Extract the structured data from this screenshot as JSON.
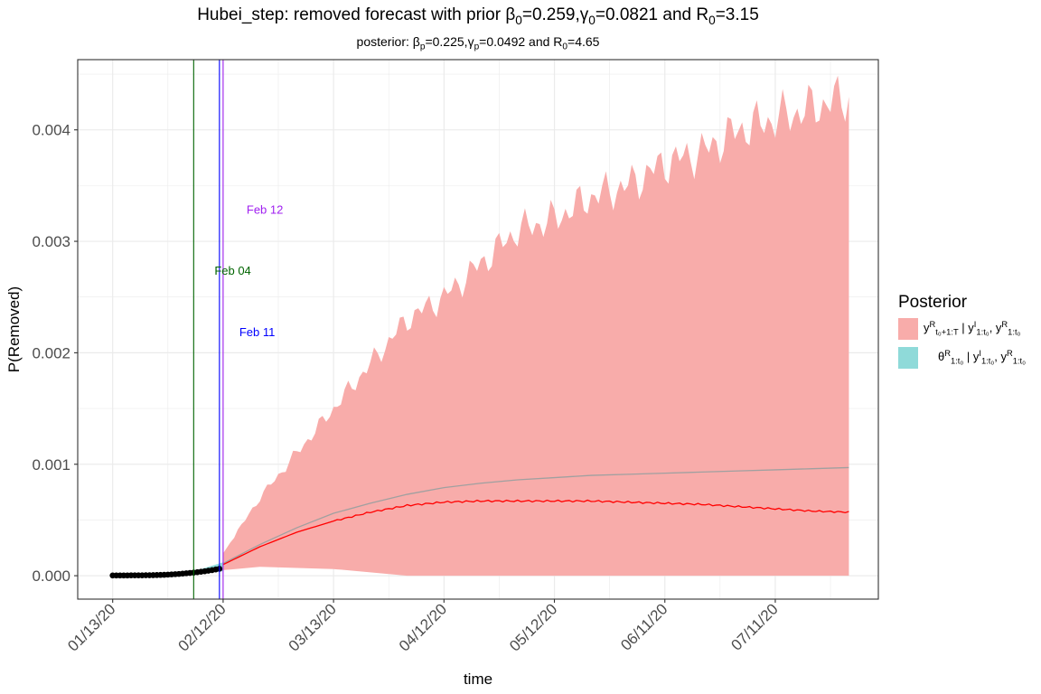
{
  "title": {
    "pre": "Hubei_step: removed forecast with prior ",
    "b": "β",
    "b_sub": "0",
    "b_val": "=0.259,",
    "g": "γ",
    "g_sub": "0",
    "g_val": "=0.0821 and R",
    "r_sub": "0",
    "r_val": "=3.15"
  },
  "subtitle": {
    "pre": "posterior: ",
    "b": "β",
    "b_sub": "p",
    "b_val": "=0.225,",
    "g": "γ",
    "g_sub": "p",
    "g_val": "=0.0492 and R",
    "r_sub": "0",
    "r_val": "=4.65"
  },
  "colors": {
    "forecast_band": "#f8acaa",
    "posterior_band": "#8fdad9",
    "forecast_median": "#ff0000",
    "prior_mean": "#a0a0a0",
    "observed": "#000000",
    "line_feb04": "#006400",
    "line_feb11": "#0000ff",
    "line_feb12": "#a020f0",
    "grid": "#ebebeb"
  },
  "legend": {
    "title": "Posterior",
    "items": [
      {
        "y": "y",
        "y_sup": "R",
        "y_sub": "t₀+1:T",
        "mid": " | y",
        "i_sup": "I",
        "i_sub": "1:t₀",
        "end": ", y",
        "r_sup": "R",
        "r_sub": "1:t₀"
      },
      {
        "y": "θ",
        "y_sup": "R",
        "y_sub": "1:t₀",
        "mid": " | y",
        "i_sup": "I",
        "i_sub": "1:t₀",
        "end": ", y",
        "r_sup": "R",
        "r_sub": "1:t₀"
      }
    ]
  },
  "chart_data": {
    "type": "area",
    "xlabel": "time",
    "ylabel": "P(Removed)",
    "x_ticks": [
      "01/13/20",
      "02/12/20",
      "03/13/20",
      "04/12/20",
      "05/12/20",
      "06/11/20",
      "07/11/20"
    ],
    "y_ticks": [
      "0.000",
      "0.001",
      "0.002",
      "0.003",
      "0.004"
    ],
    "ylim": [
      -0.00021,
      0.00463
    ],
    "xlim_days": [
      -9.5,
      208
    ],
    "x_origin": "01/13/20",
    "grid": true,
    "legend_position": "right",
    "vlines": [
      {
        "day": 22,
        "label": "Feb 04",
        "label_y": 0.00274,
        "color": "#006400"
      },
      {
        "day": 29,
        "label": "Feb 11",
        "label_y": 0.00219,
        "color": "#0000ff"
      },
      {
        "day": 30,
        "label": "Feb 12",
        "label_y": 0.00329,
        "color": "#a020f0"
      }
    ],
    "observed": {
      "days": [
        0,
        1,
        2,
        3,
        4,
        5,
        6,
        7,
        8,
        9,
        10,
        11,
        12,
        13,
        14,
        15,
        16,
        17,
        18,
        19,
        20,
        21,
        22,
        23,
        24,
        25,
        26,
        27,
        28,
        29
      ],
      "values": [
        2e-06,
        2e-06,
        2e-06,
        2e-06,
        2e-06,
        3e-06,
        3e-06,
        3e-06,
        3e-06,
        4e-06,
        4e-06,
        5e-06,
        6e-06,
        7e-06,
        8e-06,
        1e-05,
        1.2e-05,
        1.4e-05,
        1.6e-05,
        1.9e-05,
        2.2e-05,
        2.5e-05,
        2.8e-05,
        3.2e-05,
        3.6e-05,
        4e-05,
        4.5e-05,
        5e-05,
        5.6e-05,
        6.2e-05
      ]
    },
    "posterior_band": {
      "days": [
        0,
        5,
        10,
        15,
        20,
        24,
        27,
        30
      ],
      "upper": [
        3e-06,
        5e-06,
        1e-05,
        2e-05,
        4e-05,
        6e-05,
        9e-05,
        0.00012
      ],
      "lower": [
        1e-06,
        2e-06,
        4e-06,
        8e-06,
        1.4e-05,
        2.2e-05,
        3e-05,
        4e-05
      ]
    },
    "series": [
      {
        "name": "forecast band",
        "kind": "band",
        "days": [
          30,
          40,
          50,
          60,
          70,
          80,
          90,
          100,
          110,
          120,
          130,
          140,
          150,
          160,
          170,
          180,
          190,
          200
        ],
        "upper": [
          0.0002,
          0.0007,
          0.0011,
          0.0015,
          0.0019,
          0.0023,
          0.0025,
          0.0028,
          0.0031,
          0.0032,
          0.0034,
          0.0035,
          0.0037,
          0.0038,
          0.004,
          0.0041,
          0.0042,
          0.0043
        ],
        "lower": [
          5e-05,
          8e-05,
          7e-05,
          6e-05,
          3e-05,
          0.0,
          0.0,
          0.0,
          0.0,
          0.0,
          0.0,
          0.0,
          0.0,
          0.0,
          0.0,
          0.0,
          0.0,
          0.0
        ]
      },
      {
        "name": "forecast median",
        "kind": "line",
        "days": [
          30,
          40,
          50,
          60,
          70,
          80,
          90,
          100,
          110,
          120,
          130,
          140,
          150,
          160,
          170,
          180,
          190,
          200
        ],
        "values": [
          0.0001,
          0.00026,
          0.00039,
          0.00049,
          0.00057,
          0.00063,
          0.00066,
          0.00067,
          0.00067,
          0.00067,
          0.00067,
          0.00066,
          0.00065,
          0.00064,
          0.00062,
          0.0006,
          0.00058,
          0.00057
        ]
      },
      {
        "name": "prior mean",
        "kind": "line",
        "days": [
          30,
          40,
          50,
          60,
          70,
          80,
          90,
          100,
          110,
          120,
          130,
          140,
          150,
          160,
          170,
          180,
          190,
          200
        ],
        "values": [
          0.00011,
          0.00028,
          0.00043,
          0.00056,
          0.00065,
          0.00073,
          0.00079,
          0.00083,
          0.00086,
          0.00088,
          0.0009,
          0.00091,
          0.00092,
          0.00093,
          0.00094,
          0.00095,
          0.00096,
          0.00097
        ]
      }
    ]
  }
}
